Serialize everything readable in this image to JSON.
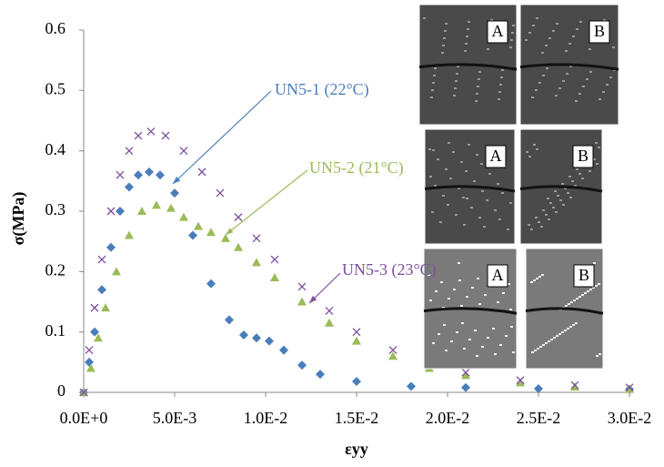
{
  "chart_data": {
    "type": "scatter",
    "xlabel": "εyy",
    "ylabel": "σ(MPa)",
    "xlim": [
      0,
      0.03
    ],
    "ylim": [
      0,
      0.6
    ],
    "xticks": [
      {
        "value": 0,
        "label": "0.0E+0"
      },
      {
        "value": 0.005,
        "label": "5.0E-3"
      },
      {
        "value": 0.01,
        "label": "1.0E-2"
      },
      {
        "value": 0.015,
        "label": "1.5E-2"
      },
      {
        "value": 0.02,
        "label": "2.0E-2"
      },
      {
        "value": 0.025,
        "label": "2.5E-2"
      },
      {
        "value": 0.03,
        "label": "3.0E-2"
      }
    ],
    "yticks": [
      0,
      0.1,
      0.2,
      0.3,
      0.4,
      0.5,
      0.6
    ],
    "series": [
      {
        "name": "UN5-1 (22°C)",
        "color": "#4a7ebb",
        "marker": "diamond",
        "x": [
          0,
          0.0003,
          0.0006,
          0.001,
          0.0015,
          0.002,
          0.0025,
          0.003,
          0.0036,
          0.0042,
          0.005,
          0.006,
          0.007,
          0.008,
          0.0088,
          0.0095,
          0.0102,
          0.011,
          0.012,
          0.013,
          0.015,
          0.018,
          0.021,
          0.025,
          0.03
        ],
        "values": [
          0,
          0.05,
          0.1,
          0.17,
          0.24,
          0.3,
          0.34,
          0.36,
          0.365,
          0.36,
          0.33,
          0.26,
          0.18,
          0.12,
          0.095,
          0.09,
          0.085,
          0.07,
          0.045,
          0.03,
          0.018,
          0.01,
          0.008,
          0.006,
          0.005
        ]
      },
      {
        "name": "UN5-2 (21°C)",
        "color": "#9bbb59",
        "marker": "triangle",
        "x": [
          0,
          0.0004,
          0.0008,
          0.0012,
          0.0018,
          0.0025,
          0.0032,
          0.004,
          0.0048,
          0.0055,
          0.0063,
          0.007,
          0.0078,
          0.0085,
          0.0095,
          0.0105,
          0.012,
          0.0135,
          0.015,
          0.017,
          0.019,
          0.021,
          0.024,
          0.027,
          0.03
        ],
        "values": [
          0,
          0.04,
          0.09,
          0.14,
          0.2,
          0.26,
          0.3,
          0.31,
          0.305,
          0.29,
          0.275,
          0.265,
          0.255,
          0.24,
          0.215,
          0.19,
          0.15,
          0.115,
          0.085,
          0.06,
          0.04,
          0.028,
          0.016,
          0.009,
          0.005
        ]
      },
      {
        "name": "UN5-3 (23°C)",
        "color": "#7d4f9e",
        "marker": "x",
        "x": [
          0,
          0.0003,
          0.0006,
          0.001,
          0.0015,
          0.002,
          0.0025,
          0.003,
          0.0037,
          0.0045,
          0.0055,
          0.0065,
          0.0075,
          0.0085,
          0.0095,
          0.0105,
          0.012,
          0.0135,
          0.015,
          0.017,
          0.019,
          0.021,
          0.024,
          0.027,
          0.03
        ],
        "values": [
          0,
          0.07,
          0.14,
          0.22,
          0.3,
          0.36,
          0.4,
          0.425,
          0.432,
          0.425,
          0.4,
          0.365,
          0.33,
          0.29,
          0.255,
          0.22,
          0.175,
          0.135,
          0.1,
          0.07,
          0.048,
          0.033,
          0.02,
          0.012,
          0.008
        ]
      }
    ],
    "grid": false,
    "inset_labels": [
      [
        "A",
        "B"
      ],
      [
        "A",
        "B"
      ],
      [
        "A",
        "B"
      ]
    ]
  }
}
